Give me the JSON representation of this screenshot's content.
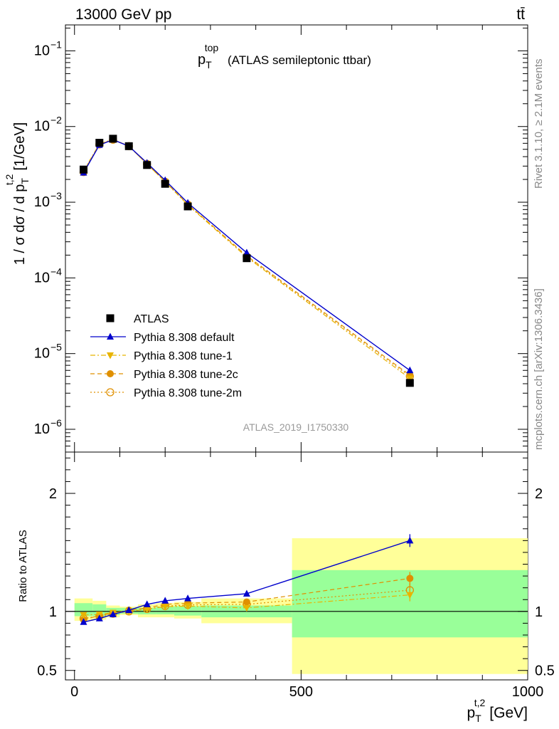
{
  "header": {
    "left": "13000 GeV pp",
    "right": "tt̄"
  },
  "chart_data": [
    {
      "type": "line",
      "panel": "main",
      "title_main": "p",
      "title_sub": "T",
      "title_sup": "top",
      "title_rest": "(ATLAS semileptonic ttbar)",
      "ylabel": {
        "text": "1 / σ dσ / d p",
        "sub": "T",
        "sup": "t,2",
        "unit": "[1/GeV]"
      },
      "yscale": "log",
      "ylim": [
        5e-07,
        0.22
      ],
      "xlim": [
        -20,
        1000
      ],
      "y_tick_labels": [
        "10",
        "10",
        "10",
        "10",
        "10",
        "10"
      ],
      "y_tick_exponents": [
        "−1",
        "−2",
        "−3",
        "−4",
        "−5",
        "−6"
      ],
      "y_tick_values": [
        0.1,
        0.01,
        0.001,
        0.0001,
        1e-05,
        1e-06
      ],
      "x": [
        20,
        55,
        85,
        120,
        160,
        200,
        250,
        380,
        740
      ],
      "series": [
        {
          "name": "ATLAS",
          "marker": "square",
          "color": "#000000",
          "line": "none",
          "values": [
            0.0027,
            0.0061,
            0.0069,
            0.0055,
            0.0031,
            0.00175,
            0.00088,
            0.000182,
            4.1e-06
          ]
        },
        {
          "name": "Pythia 8.308 default",
          "marker": "triangle-up",
          "color": "#0000cc",
          "line": "solid",
          "values": [
            0.00245,
            0.0057,
            0.0067,
            0.0055,
            0.0033,
            0.00195,
            0.00098,
            0.000215,
            6e-06
          ]
        },
        {
          "name": "Pythia 8.308 tune-1",
          "marker": "triangle-down",
          "color": "#e8b400",
          "line": "dashdot",
          "values": [
            0.0026,
            0.0059,
            0.0068,
            0.0055,
            0.0032,
            0.00186,
            0.00092,
            0.000188,
            4.7e-06
          ]
        },
        {
          "name": "Pythia 8.308 tune-2c",
          "marker": "circle",
          "color": "#e09000",
          "line": "dashed",
          "values": [
            0.0025,
            0.0058,
            0.0067,
            0.0055,
            0.0032,
            0.00187,
            0.00094,
            0.000196,
            5.2e-06
          ]
        },
        {
          "name": "Pythia 8.308 tune-2m",
          "marker": "circle-open",
          "color": "#e09000",
          "line": "dotted",
          "values": [
            0.0025,
            0.0058,
            0.0067,
            0.0055,
            0.0032,
            0.00186,
            0.00093,
            0.000192,
            5e-06
          ]
        }
      ],
      "analysis_label": "ATLAS_2019_I1750330"
    },
    {
      "type": "line",
      "panel": "ratio",
      "ylabel": "Ratio to ATLAS",
      "ylim": [
        0.42,
        2.35
      ],
      "xlim": [
        -20,
        1000
      ],
      "y_tick_labels": [
        "2",
        "1",
        "0.5"
      ],
      "y_tick_values": [
        2,
        1,
        0.5
      ],
      "x_tick_labels": [
        "0",
        "500",
        "1000"
      ],
      "x_tick_values": [
        0,
        500,
        1000
      ],
      "xlabel": {
        "text": "p",
        "sub": "T",
        "sup": "t,2",
        "unit": "[GeV]"
      },
      "x": [
        20,
        55,
        85,
        120,
        160,
        200,
        250,
        380,
        740
      ],
      "bins": [
        [
          0,
          40
        ],
        [
          40,
          70
        ],
        [
          70,
          100
        ],
        [
          100,
          140
        ],
        [
          140,
          180
        ],
        [
          180,
          220
        ],
        [
          220,
          280
        ],
        [
          280,
          480
        ],
        [
          480,
          1000
        ]
      ],
      "band_stat": [
        [
          0.96,
          1.07
        ],
        [
          0.96,
          1.06
        ],
        [
          0.97,
          1.03
        ],
        [
          0.98,
          1.03
        ],
        [
          0.975,
          1.03
        ],
        [
          0.975,
          1.04
        ],
        [
          0.965,
          1.045
        ],
        [
          0.95,
          1.05
        ],
        [
          0.78,
          1.35
        ]
      ],
      "band_total": [
        [
          0.92,
          1.11
        ],
        [
          0.93,
          1.09
        ],
        [
          0.95,
          1.05
        ],
        [
          0.97,
          1.04
        ],
        [
          0.95,
          1.06
        ],
        [
          0.95,
          1.07
        ],
        [
          0.94,
          1.08
        ],
        [
          0.9,
          1.11
        ],
        [
          0.47,
          1.62
        ]
      ],
      "series": [
        {
          "name": "Pythia 8.308 default",
          "color": "#0000cc",
          "marker": "triangle-up",
          "line": "solid",
          "values": [
            0.91,
            0.94,
            0.975,
            1.01,
            1.06,
            1.09,
            1.11,
            1.15,
            1.6
          ]
        },
        {
          "name": "Pythia 8.308 tune-1",
          "color": "#e8b400",
          "marker": "triangle-down",
          "line": "dashdot",
          "values": [
            0.97,
            0.975,
            0.99,
            1.0,
            1.02,
            1.04,
            1.045,
            1.03,
            1.14
          ]
        },
        {
          "name": "Pythia 8.308 tune-2c",
          "color": "#e09000",
          "marker": "circle",
          "line": "dashed",
          "values": [
            0.93,
            0.965,
            0.985,
            1.01,
            1.03,
            1.06,
            1.07,
            1.08,
            1.28
          ]
        },
        {
          "name": "Pythia 8.308 tune-2m",
          "color": "#e09000",
          "marker": "circle-open",
          "line": "dotted",
          "values": [
            0.94,
            0.96,
            0.98,
            1.0,
            1.02,
            1.045,
            1.055,
            1.06,
            1.18
          ]
        }
      ]
    }
  ],
  "side_labels": {
    "rivet": "Rivet 3.1.10, ≥ 2.1M events",
    "mcplots": "mcplots.cern.ch [arXiv:1306.3436]"
  },
  "colors": {
    "stat_band": "#99ff99",
    "total_band": "#ffff99",
    "ref_line": "#000000"
  }
}
